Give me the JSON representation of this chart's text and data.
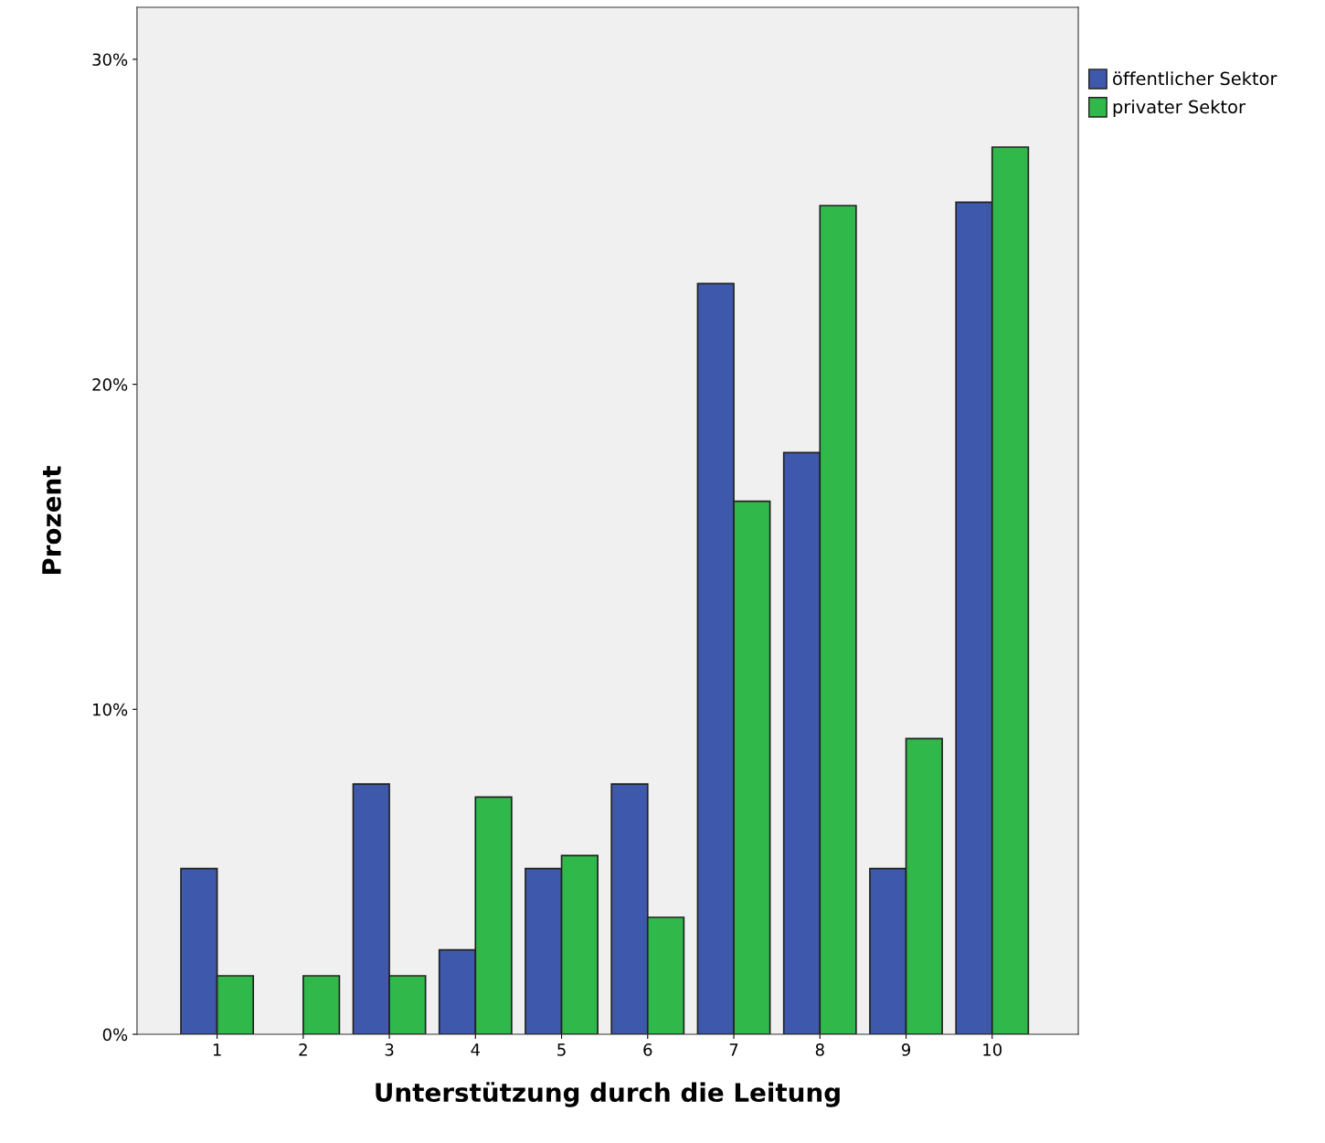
{
  "chart_data": {
    "type": "bar",
    "xlabel": "Unterstützung durch die Leitung",
    "ylabel": "Prozent",
    "categories": [
      "1",
      "2",
      "3",
      "4",
      "5",
      "6",
      "7",
      "8",
      "9",
      "10"
    ],
    "series": [
      {
        "name": "öffentlicher Sektor",
        "color": "#3e58ac",
        "values": [
          5.1,
          null,
          7.7,
          2.6,
          5.1,
          7.7,
          23.1,
          17.9,
          5.1,
          25.6
        ]
      },
      {
        "name": "privater Sektor",
        "color": "#30b84a",
        "values": [
          1.8,
          1.8,
          1.8,
          7.3,
          5.5,
          3.6,
          16.4,
          25.5,
          9.1,
          27.3
        ]
      }
    ],
    "ylim": [
      0,
      31.6
    ],
    "yticks": [
      {
        "value": 0,
        "label": "0%"
      },
      {
        "value": 10,
        "label": "10%"
      },
      {
        "value": 20,
        "label": "20%"
      },
      {
        "value": 30,
        "label": "30%"
      }
    ],
    "grid": false,
    "legend": "top right"
  }
}
